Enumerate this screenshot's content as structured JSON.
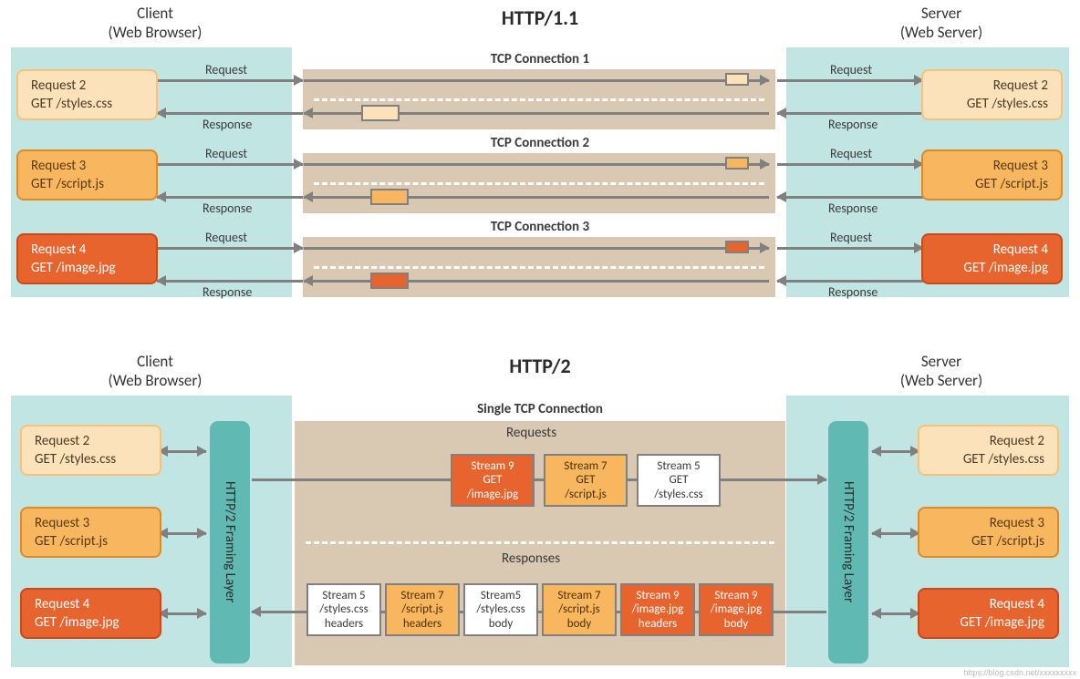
{
  "colors": {
    "hostBg": "#c1e5e2",
    "bandBg": "#d9c9b2",
    "arrow": "#808080",
    "tealFill": "#61b9b3",
    "r2Bg": "#fbe2bb",
    "r2Border": "#f4c27a",
    "r2Text": "#4a3b23",
    "r3Bg": "#f8b75f",
    "r3Border": "#dd8a2a",
    "r3Text": "#5a3a0c",
    "r4Bg": "#e8642f",
    "r4Border": "#c64a1b",
    "r4Text": "#ffffff",
    "packet2": "#fbe2bb",
    "packet3": "#f8b75f",
    "packet4": "#e8642f"
  },
  "http11": {
    "title": "HTTP/1.1",
    "client": {
      "l1": "Client",
      "l2": "(Web Browser)"
    },
    "server": {
      "l1": "Server",
      "l2": "(Web Server)"
    },
    "conns": [
      {
        "title": "TCP Connection 1",
        "reqLabel": "Request",
        "resLabel": "Response"
      },
      {
        "title": "TCP Connection 2",
        "reqLabel": "Request",
        "resLabel": "Response"
      },
      {
        "title": "TCP Connection 3",
        "reqLabel": "Request",
        "resLabel": "Response"
      }
    ],
    "cards": {
      "r2": {
        "title": "Request 2",
        "path": "GET /styles.css"
      },
      "r3": {
        "title": "Request 3",
        "path": "GET /script.js"
      },
      "r4": {
        "title": "Request  4",
        "path": "GET /image.jpg"
      }
    }
  },
  "http2": {
    "title": "HTTP/2",
    "client": {
      "l1": "Client",
      "l2": "(Web Browser)"
    },
    "server": {
      "l1": "Server",
      "l2": "(Web Server)"
    },
    "singleConn": "Single TCP Connection",
    "framing": "HTTP/2 Framing Layer",
    "requestsLabel": "Requests",
    "responsesLabel": "Responses",
    "cards": {
      "r2": {
        "title": "Request 2",
        "path": "GET /styles.css"
      },
      "r3": {
        "title": "Request 3",
        "path": "GET /script.js"
      },
      "r4": {
        "title": "Request 4",
        "path": "GET /image.jpg"
      }
    },
    "reqStreams": [
      {
        "l1": "Stream 9",
        "l2": "GET",
        "l3": "/image.jpg",
        "bg": "#e8642f",
        "fg": "#ffffff"
      },
      {
        "l1": "Stream 7",
        "l2": "GET",
        "l3": "/script.js",
        "bg": "#f8b75f",
        "fg": "#4a3100"
      },
      {
        "l1": "Stream 5",
        "l2": "GET",
        "l3": "/styles.css",
        "bg": "#ffffff",
        "fg": "#3a3a3a"
      }
    ],
    "resStreams": [
      {
        "l1": "Stream 5",
        "l2": "/styles.css",
        "l3": "headers",
        "bg": "#ffffff",
        "fg": "#3a3a3a"
      },
      {
        "l1": "Stream 7",
        "l2": "/script.js",
        "l3": "headers",
        "bg": "#f8b75f",
        "fg": "#4a3100"
      },
      {
        "l1": "Stream5",
        "l2": "/styles.css",
        "l3": "body",
        "bg": "#ffffff",
        "fg": "#3a3a3a"
      },
      {
        "l1": "Stream 7",
        "l2": "/script.js",
        "l3": "body",
        "bg": "#f8b75f",
        "fg": "#4a3100"
      },
      {
        "l1": "Stream 9",
        "l2": "/image.jpg",
        "l3": "headers",
        "bg": "#e8642f",
        "fg": "#ffffff"
      },
      {
        "l1": "Stream 9",
        "l2": "/image.jpg",
        "l3": "body",
        "bg": "#e8642f",
        "fg": "#ffffff"
      }
    ]
  },
  "watermark": "https://blog.csdn.net/xxxxxxxxx"
}
